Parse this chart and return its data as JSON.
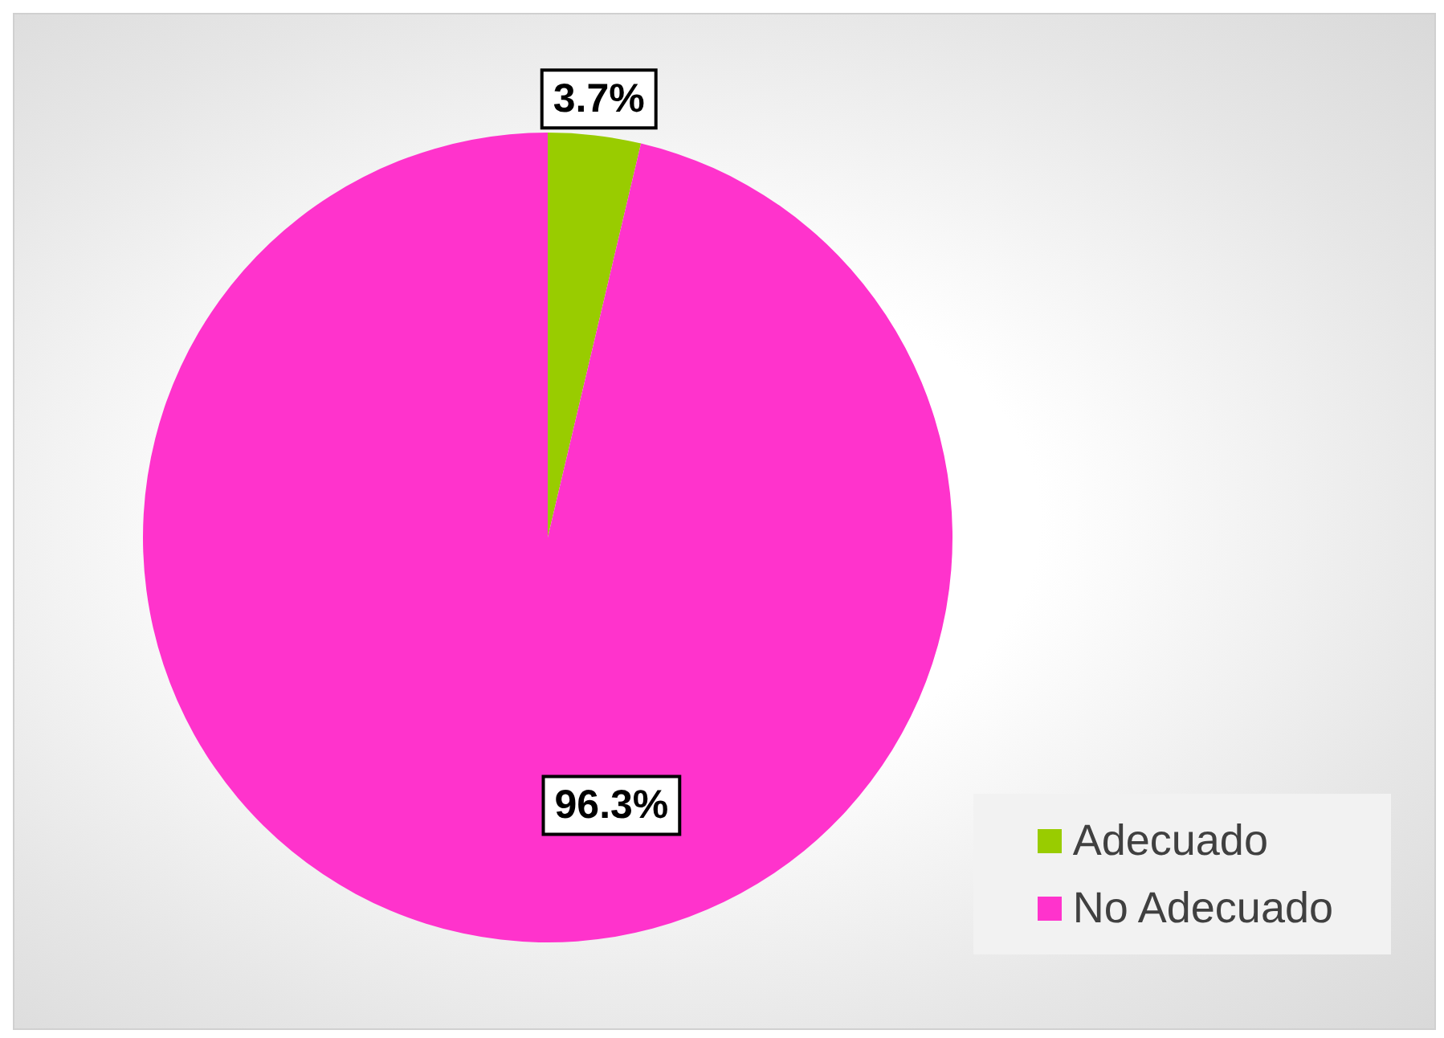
{
  "chart_data": {
    "type": "pie",
    "categories": [
      "Adecuado",
      "No Adecuado"
    ],
    "values": [
      3.7,
      96.3
    ],
    "colors": [
      "#99cc00",
      "#ff33cc"
    ],
    "value_labels": [
      "3.7%",
      "96.3%"
    ],
    "legend": "bottom right"
  }
}
